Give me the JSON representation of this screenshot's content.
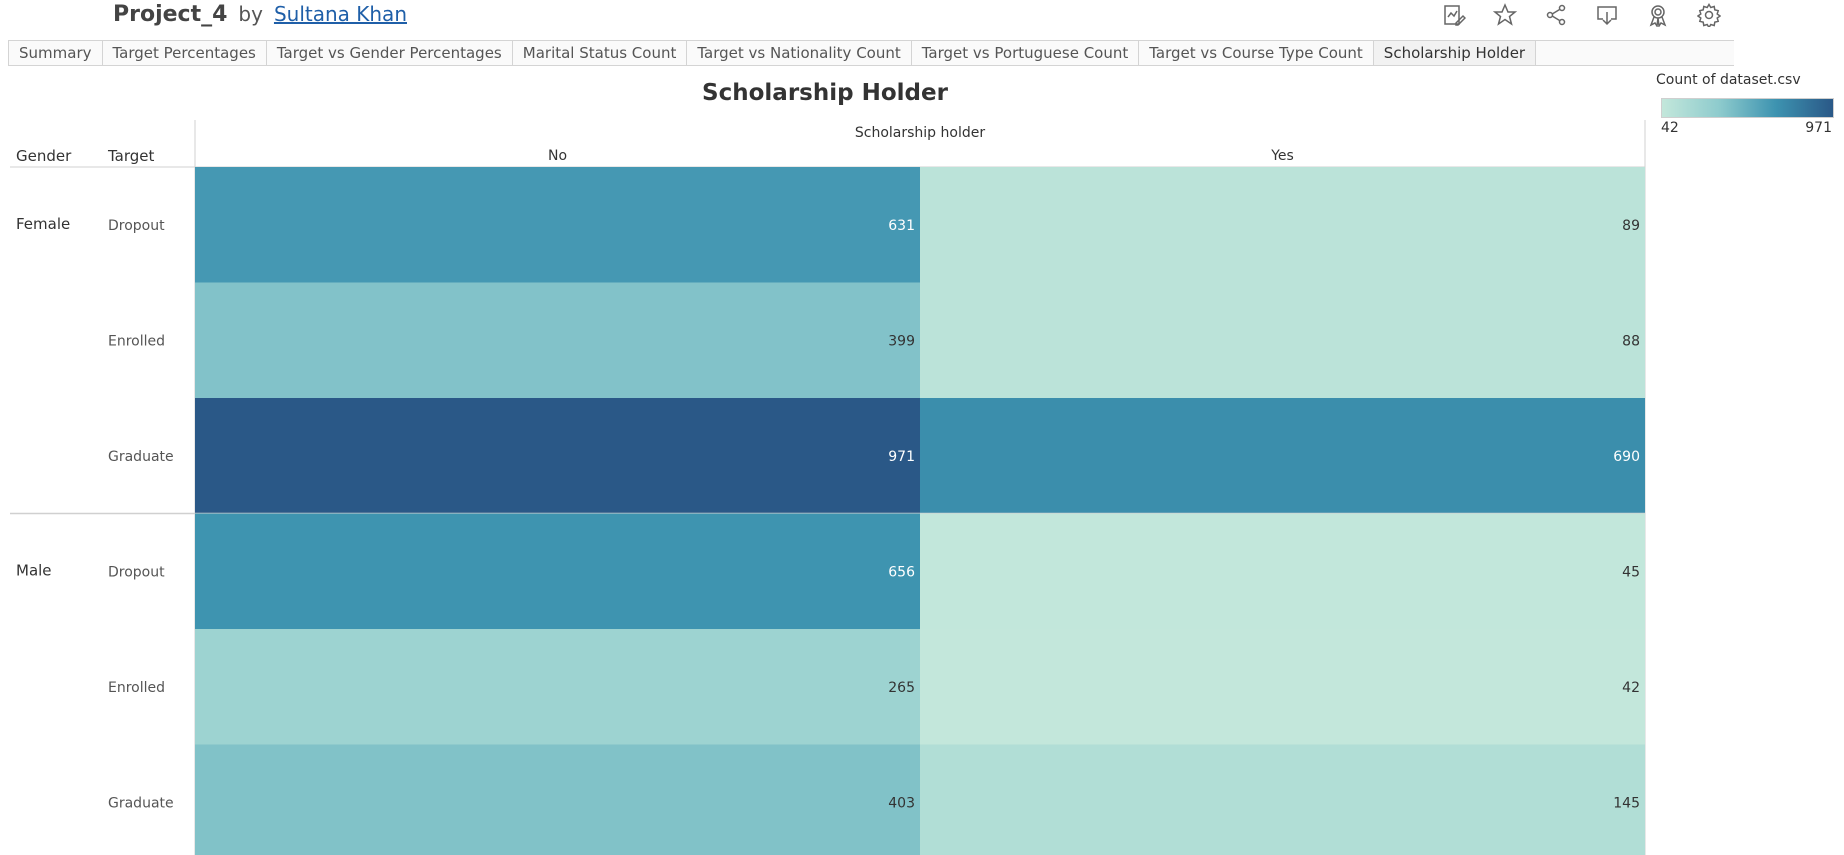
{
  "header": {
    "project": "Project_4",
    "by": "by",
    "author": "Sultana Khan",
    "toolbar_icons": [
      "edit-icon",
      "star-icon",
      "share-icon",
      "download-icon",
      "award-icon",
      "gear-icon"
    ]
  },
  "tabs": [
    {
      "label": "Summary",
      "active": false
    },
    {
      "label": "Target Percentages",
      "active": false
    },
    {
      "label": "Target vs Gender Percentages",
      "active": false
    },
    {
      "label": "Marital Status Count",
      "active": false
    },
    {
      "label": "Target vs Nationality Count",
      "active": false
    },
    {
      "label": "Target vs Portuguese Count",
      "active": false
    },
    {
      "label": "Target vs Course Type Count",
      "active": false
    },
    {
      "label": "Scholarship Holder",
      "active": true
    }
  ],
  "legend": {
    "title": "Count of dataset.csv",
    "min_label": "42",
    "max_label": "971",
    "colors": [
      "#c3e7db",
      "#8ecbcd",
      "#3d93b0",
      "#2a5887"
    ]
  },
  "chart_data": {
    "type": "heatmap",
    "title": "Scholarship Holder",
    "column_header": "Scholarship holder",
    "row_headers": [
      "Gender",
      "Target"
    ],
    "columns": [
      "No",
      "Yes"
    ],
    "groups": [
      {
        "gender": "Female",
        "rows": [
          {
            "target": "Dropout",
            "values": [
              631,
              89
            ]
          },
          {
            "target": "Enrolled",
            "values": [
              399,
              88
            ]
          },
          {
            "target": "Graduate",
            "values": [
              971,
              690
            ]
          }
        ]
      },
      {
        "gender": "Male",
        "rows": [
          {
            "target": "Dropout",
            "values": [
              656,
              45
            ]
          },
          {
            "target": "Enrolled",
            "values": [
              265,
              42
            ]
          },
          {
            "target": "Graduate",
            "values": [
              403,
              145
            ]
          }
        ]
      }
    ],
    "color_range": [
      42,
      971
    ]
  }
}
